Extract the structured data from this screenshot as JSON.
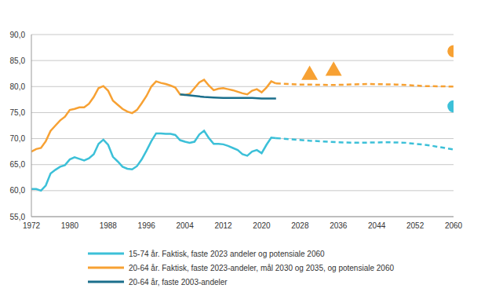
{
  "chart_data": {
    "type": "line",
    "xlim": [
      1972,
      2060
    ],
    "xticks": [
      1972,
      1980,
      1988,
      1996,
      2004,
      2012,
      2020,
      2028,
      2036,
      2044,
      2052,
      2060
    ],
    "ylim": [
      55,
      90
    ],
    "yticks": [
      {
        "value": 55,
        "label": "55,0"
      },
      {
        "value": 60,
        "label": "60,0"
      },
      {
        "value": 65,
        "label": "65,0"
      },
      {
        "value": 70,
        "label": "70,0"
      },
      {
        "value": 75,
        "label": "75,0"
      },
      {
        "value": 80,
        "label": "80,0"
      },
      {
        "value": 85,
        "label": "85,0"
      },
      {
        "value": 90,
        "label": "90,0"
      }
    ],
    "grid": true,
    "legend": "bottom",
    "series": [
      {
        "name": "15-74 år. Faktisk, faste 2023 andeler og potensiale 2060",
        "type": "line",
        "line_style": "solid",
        "color": "#3cc0d8",
        "x": [
          1972,
          1973,
          1974,
          1975,
          1976,
          1977,
          1978,
          1979,
          1980,
          1981,
          1982,
          1983,
          1984,
          1985,
          1986,
          1987,
          1988,
          1989,
          1990,
          1991,
          1992,
          1993,
          1994,
          1995,
          1996,
          1997,
          1998,
          1999,
          2000,
          2001,
          2002,
          2003,
          2004,
          2005,
          2006,
          2007,
          2008,
          2009,
          2010,
          2011,
          2012,
          2013,
          2014,
          2015,
          2016,
          2017,
          2018,
          2019,
          2020,
          2021,
          2022,
          2023
        ],
        "values": [
          60.3,
          60.3,
          60.0,
          61.0,
          63.3,
          64.0,
          64.6,
          64.9,
          66.0,
          66.4,
          66.1,
          65.8,
          66.2,
          67.0,
          69.0,
          69.8,
          68.8,
          66.5,
          65.6,
          64.6,
          64.2,
          64.1,
          64.7,
          66.0,
          67.7,
          69.5,
          71.0,
          71.0,
          70.9,
          70.9,
          70.7,
          69.7,
          69.4,
          69.2,
          69.4,
          70.8,
          71.5,
          70.1,
          69.0,
          69.0,
          68.9,
          68.6,
          68.2,
          67.8,
          67.0,
          66.7,
          67.5,
          67.8,
          67.2,
          68.8,
          70.2,
          70.1
        ]
      },
      {
        "name": "15-74 år. Faktisk, faste 2023 andeler og potensiale 2060",
        "type": "line",
        "line_style": "dashed",
        "color": "#3cc0d8",
        "x": [
          2023,
          2030,
          2036,
          2040,
          2046,
          2050,
          2055,
          2060
        ],
        "values": [
          70.1,
          69.6,
          69.3,
          69.2,
          69.3,
          69.2,
          68.7,
          67.9
        ]
      },
      {
        "name": "15-74 år. Faktisk, faste 2023 andeler og potensiale 2060",
        "type": "scatter",
        "marker": "circle",
        "color": "#3cc0d8",
        "x": [
          2060
        ],
        "values": [
          76.2
        ]
      },
      {
        "name": "20-64 år. Faktisk, faste 2023-andeler, mål 2030 og 2035, og potensiale 2060",
        "type": "line",
        "line_style": "solid",
        "color": "#f7a133",
        "x": [
          1972,
          1973,
          1974,
          1975,
          1976,
          1977,
          1978,
          1979,
          1980,
          1981,
          1982,
          1983,
          1984,
          1985,
          1986,
          1987,
          1988,
          1989,
          1990,
          1991,
          1992,
          1993,
          1994,
          1995,
          1996,
          1997,
          1998,
          1999,
          2000,
          2001,
          2002,
          2003,
          2004,
          2005,
          2006,
          2007,
          2008,
          2009,
          2010,
          2011,
          2012,
          2013,
          2014,
          2015,
          2016,
          2017,
          2018,
          2019,
          2020,
          2021,
          2022,
          2023
        ],
        "values": [
          67.5,
          68.0,
          68.2,
          69.5,
          71.5,
          72.5,
          73.5,
          74.2,
          75.5,
          75.7,
          76.0,
          76.0,
          76.7,
          78.0,
          79.7,
          80.1,
          79.2,
          77.3,
          76.5,
          75.7,
          75.2,
          74.9,
          75.5,
          76.8,
          78.2,
          80.0,
          81.0,
          80.7,
          80.5,
          80.2,
          79.8,
          78.5,
          78.4,
          78.6,
          79.7,
          80.8,
          81.3,
          80.2,
          79.3,
          79.6,
          79.7,
          79.5,
          79.3,
          79.0,
          78.7,
          78.5,
          79.2,
          79.5,
          78.9,
          79.8,
          81.0,
          80.6
        ]
      },
      {
        "name": "20-64 år. Faktisk, faste 2023-andeler, mål 2030 og 2035, og potensiale 2060",
        "type": "line",
        "line_style": "dashed",
        "color": "#f7a133",
        "x": [
          2023,
          2028,
          2035,
          2042,
          2048,
          2054,
          2060
        ],
        "values": [
          80.6,
          80.4,
          80.3,
          80.5,
          80.4,
          80.1,
          80.0
        ]
      },
      {
        "name": "20-64 år. Faktisk, faste 2023-andeler, mål 2030 og 2035, og potensiale 2060",
        "type": "scatter",
        "marker": "triangle",
        "color": "#f7a133",
        "x": [
          2030,
          2035
        ],
        "values": [
          82.2,
          83.0
        ]
      },
      {
        "name": "20-64 år. Faktisk, faste 2023-andeler, mål 2030 og 2035, og potensiale 2060",
        "type": "scatter",
        "marker": "circle",
        "color": "#f7a133",
        "x": [
          2060
        ],
        "values": [
          86.8
        ]
      },
      {
        "name": "20-64 år, faste 2003-andeler",
        "type": "line",
        "line_style": "solid",
        "color": "#1b6f8c",
        "x": [
          2003,
          2005,
          2008,
          2010,
          2012,
          2015,
          2018,
          2020,
          2023
        ],
        "values": [
          78.5,
          78.3,
          78.0,
          77.9,
          77.8,
          77.8,
          77.8,
          77.7,
          77.7
        ]
      }
    ]
  }
}
